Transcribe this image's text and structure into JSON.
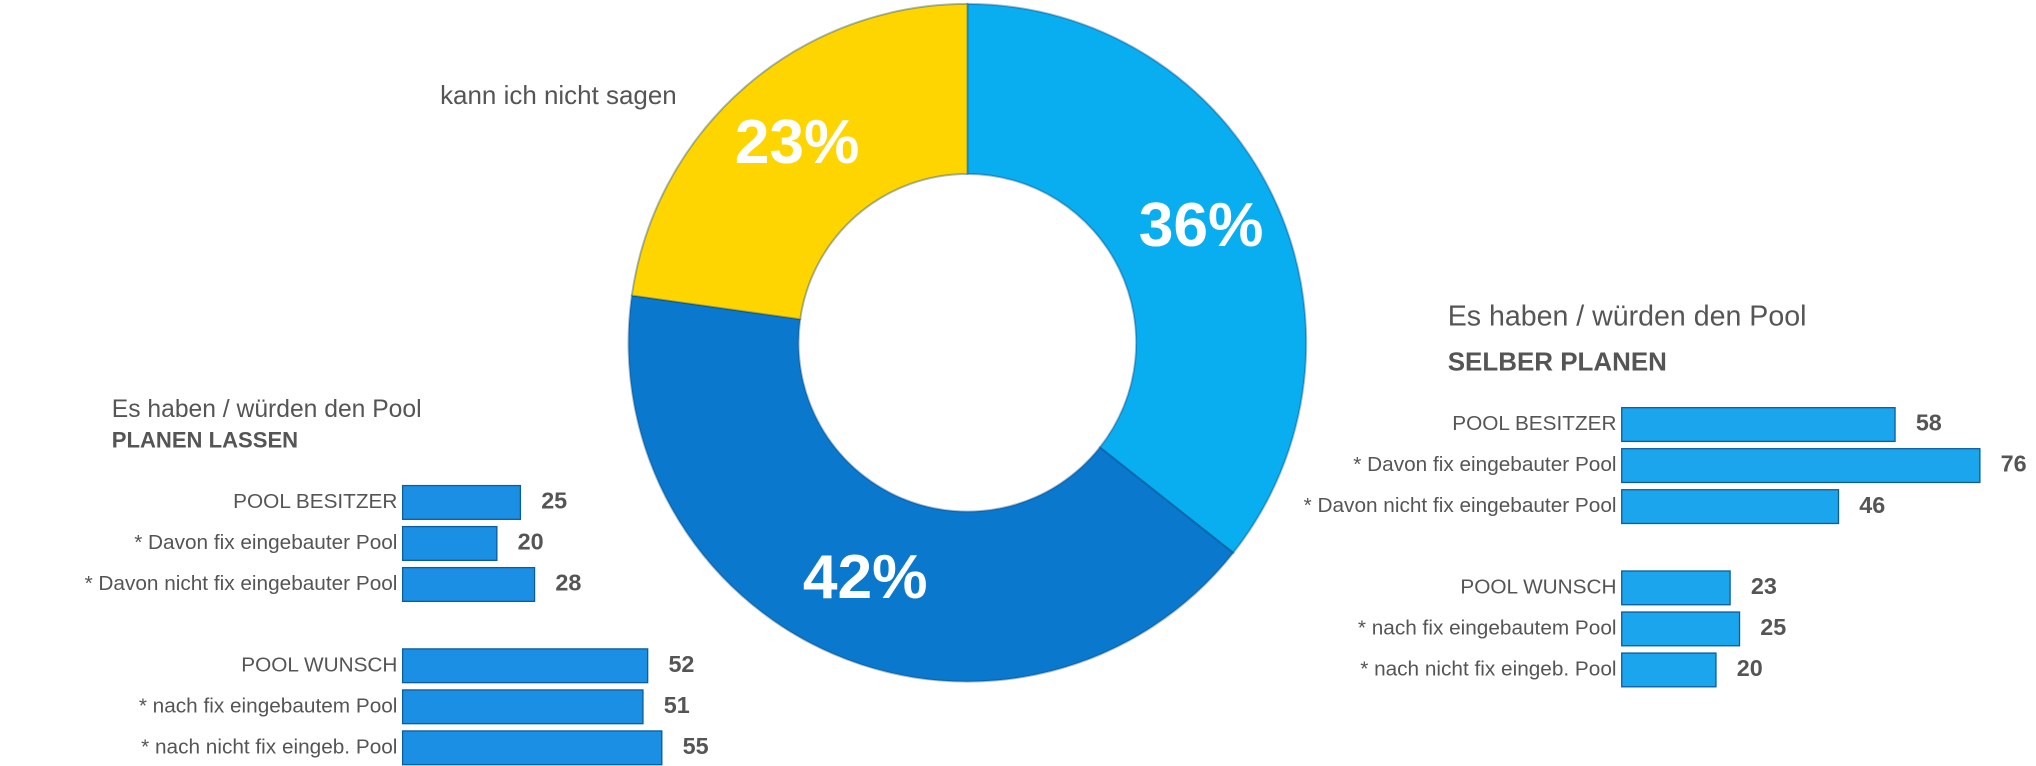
{
  "chart_data": [
    {
      "type": "pie",
      "donut": true,
      "categories": [
        null,
        null,
        "kann ich nicht sagen"
      ],
      "values": [
        36,
        42,
        23
      ],
      "value_labels": [
        "36%",
        "42%",
        "23%"
      ],
      "colors": [
        "#08aef0",
        "#0a78cc",
        "#ffd500"
      ]
    },
    {
      "type": "barh",
      "title": "Es haben / würden den Pool",
      "subtitle": "PLANEN LASSEN",
      "categories": [
        "POOL BESITZER",
        "* Davon fix eingebauter Pool",
        "* Davon nicht fix eingebauter Pool",
        "POOL WUNSCH",
        "* nach  fix eingebautem Pool",
        "* nach nicht fix eingeb. Pool"
      ],
      "values": [
        25,
        20,
        28,
        52,
        51,
        55
      ],
      "color": "#1b8fe3"
    },
    {
      "type": "barh",
      "title": "Es haben / würden den Pool",
      "subtitle": "SELBER PLANEN",
      "categories": [
        "POOL BESITZER",
        "* Davon fix eingebauter Pool",
        "* Davon nicht fix eingebauter Pool",
        "POOL WUNSCH",
        "* nach  fix eingebautem Pool",
        "* nach nicht fix eingeb. Pool"
      ],
      "values": [
        58,
        76,
        46,
        23,
        25,
        20
      ],
      "color": "#1ba5ec"
    }
  ]
}
